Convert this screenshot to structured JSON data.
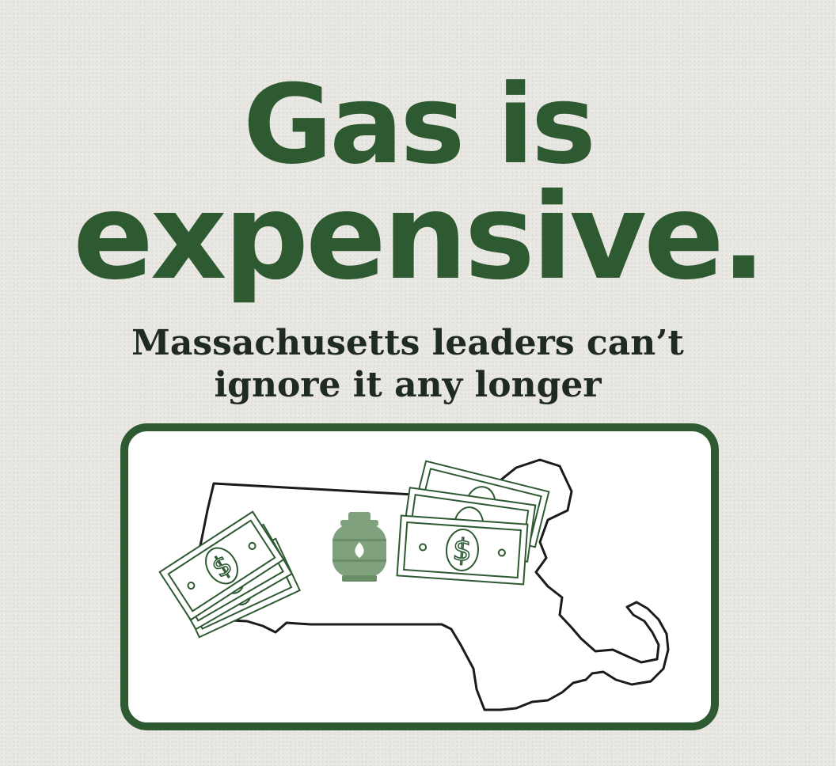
{
  "headline": {
    "line1": "Gas is",
    "line2": "expensive."
  },
  "subheadline": {
    "line1": "Massachusetts leaders can’t",
    "line2": "ignore it any longer"
  },
  "illustration": {
    "outline": "massachusetts-state-outline",
    "icons": [
      "dollar-bills-icon",
      "propane-tank-icon",
      "dollar-bills-icon"
    ],
    "dollar_symbol": "$"
  },
  "colors": {
    "primary_green": "#2e5a32",
    "icon_green": "#7fa27c",
    "background": "#e9e7e2",
    "panel": "#ffffff"
  }
}
